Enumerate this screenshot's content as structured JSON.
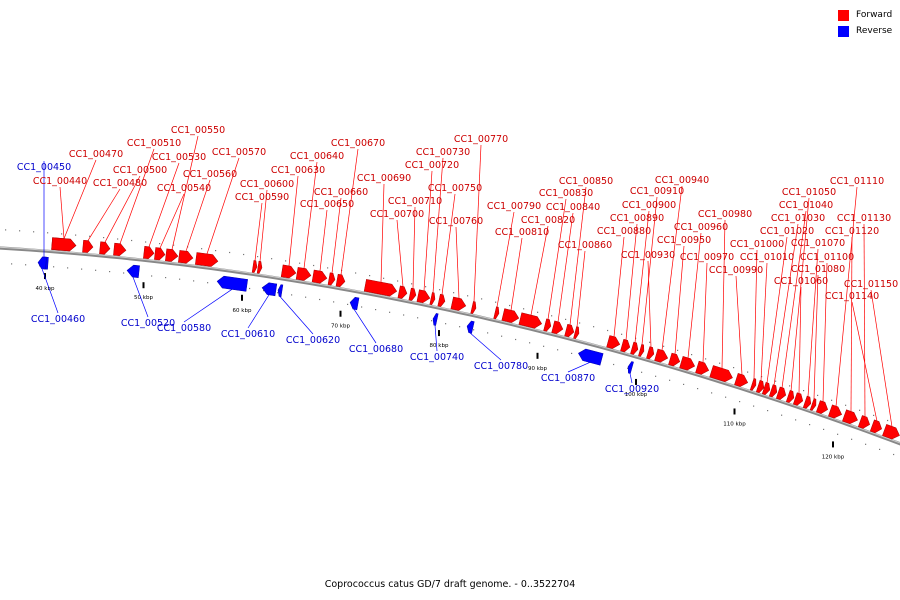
{
  "legend": {
    "forward_label": "Forward",
    "reverse_label": "Reverse",
    "forward_color": "#ff0000",
    "reverse_color": "#0000ff"
  },
  "caption": "Coprococcus catus GD/7 draft genome. - 0..3522704",
  "colors": {
    "forward": "#ff0000",
    "reverse": "#0000ff",
    "label_forward": "#cc0000",
    "label_reverse": "#0000cc",
    "backbone": "#888888"
  },
  "scale": {
    "ticks": [
      {
        "label": "40 kbp",
        "kbp": 40
      },
      {
        "label": "50 kbp",
        "kbp": 50
      },
      {
        "label": "60 kbp",
        "kbp": 60
      },
      {
        "label": "70 kbp",
        "kbp": 70
      },
      {
        "label": "80 kbp",
        "kbp": 80
      },
      {
        "label": "90 kbp",
        "kbp": 90
      },
      {
        "label": "100 kbp",
        "kbp": 100
      },
      {
        "label": "110 kbp",
        "kbp": 110
      },
      {
        "label": "120 kbp",
        "kbp": 120
      }
    ]
  },
  "genes": [
    {
      "label": "CC1_00440",
      "strand": "forward"
    },
    {
      "label": "CC1_00450",
      "strand": "reverse"
    },
    {
      "label": "CC1_00460",
      "strand": "reverse"
    },
    {
      "label": "CC1_00470",
      "strand": "forward"
    },
    {
      "label": "CC1_00480",
      "strand": "forward"
    },
    {
      "label": "CC1_00500",
      "strand": "forward"
    },
    {
      "label": "CC1_00510",
      "strand": "forward"
    },
    {
      "label": "CC1_00520",
      "strand": "reverse"
    },
    {
      "label": "CC1_00530",
      "strand": "forward"
    },
    {
      "label": "CC1_00540",
      "strand": "forward"
    },
    {
      "label": "CC1_00550",
      "strand": "forward"
    },
    {
      "label": "CC1_00560",
      "strand": "forward"
    },
    {
      "label": "CC1_00570",
      "strand": "forward"
    },
    {
      "label": "CC1_00580",
      "strand": "reverse"
    },
    {
      "label": "CC1_00590",
      "strand": "forward"
    },
    {
      "label": "CC1_00600",
      "strand": "forward"
    },
    {
      "label": "CC1_00610",
      "strand": "reverse"
    },
    {
      "label": "CC1_00620",
      "strand": "reverse"
    },
    {
      "label": "CC1_00630",
      "strand": "forward"
    },
    {
      "label": "CC1_00640",
      "strand": "forward"
    },
    {
      "label": "CC1_00650",
      "strand": "forward"
    },
    {
      "label": "CC1_00660",
      "strand": "forward"
    },
    {
      "label": "CC1_00670",
      "strand": "forward"
    },
    {
      "label": "CC1_00680",
      "strand": "reverse"
    },
    {
      "label": "CC1_00690",
      "strand": "forward"
    },
    {
      "label": "CC1_00700",
      "strand": "forward"
    },
    {
      "label": "CC1_00710",
      "strand": "forward"
    },
    {
      "label": "CC1_00720",
      "strand": "forward"
    },
    {
      "label": "CC1_00730",
      "strand": "forward"
    },
    {
      "label": "CC1_00740",
      "strand": "reverse"
    },
    {
      "label": "CC1_00750",
      "strand": "forward"
    },
    {
      "label": "CC1_00760",
      "strand": "forward"
    },
    {
      "label": "CC1_00770",
      "strand": "forward"
    },
    {
      "label": "CC1_00780",
      "strand": "reverse"
    },
    {
      "label": "CC1_00790",
      "strand": "forward"
    },
    {
      "label": "CC1_00810",
      "strand": "forward"
    },
    {
      "label": "CC1_00820",
      "strand": "forward"
    },
    {
      "label": "CC1_00830",
      "strand": "forward"
    },
    {
      "label": "CC1_00840",
      "strand": "forward"
    },
    {
      "label": "CC1_00850",
      "strand": "forward"
    },
    {
      "label": "CC1_00860",
      "strand": "forward"
    },
    {
      "label": "CC1_00870",
      "strand": "reverse"
    },
    {
      "label": "CC1_00880",
      "strand": "forward"
    },
    {
      "label": "CC1_00890",
      "strand": "forward"
    },
    {
      "label": "CC1_00900",
      "strand": "forward"
    },
    {
      "label": "CC1_00910",
      "strand": "forward"
    },
    {
      "label": "CC1_00920",
      "strand": "reverse"
    },
    {
      "label": "CC1_00930",
      "strand": "forward"
    },
    {
      "label": "CC1_00940",
      "strand": "forward"
    },
    {
      "label": "CC1_00950",
      "strand": "forward"
    },
    {
      "label": "CC1_00960",
      "strand": "forward"
    },
    {
      "label": "CC1_00970",
      "strand": "forward"
    },
    {
      "label": "CC1_00980",
      "strand": "forward"
    },
    {
      "label": "CC1_00990",
      "strand": "forward"
    },
    {
      "label": "CC1_01000",
      "strand": "forward"
    },
    {
      "label": "CC1_01010",
      "strand": "forward"
    },
    {
      "label": "CC1_01020",
      "strand": "forward"
    },
    {
      "label": "CC1_01030",
      "strand": "forward"
    },
    {
      "label": "CC1_01040",
      "strand": "forward"
    },
    {
      "label": "CC1_01050",
      "strand": "forward"
    },
    {
      "label": "CC1_01060",
      "strand": "forward"
    },
    {
      "label": "CC1_01070",
      "strand": "forward"
    },
    {
      "label": "CC1_01080",
      "strand": "forward"
    },
    {
      "label": "CC1_01100",
      "strand": "forward"
    },
    {
      "label": "CC1_01110",
      "strand": "forward"
    },
    {
      "label": "CC1_01120",
      "strand": "forward"
    },
    {
      "label": "CC1_01130",
      "strand": "forward"
    },
    {
      "label": "CC1_01140",
      "strand": "forward"
    },
    {
      "label": "CC1_01150",
      "strand": "forward"
    }
  ]
}
